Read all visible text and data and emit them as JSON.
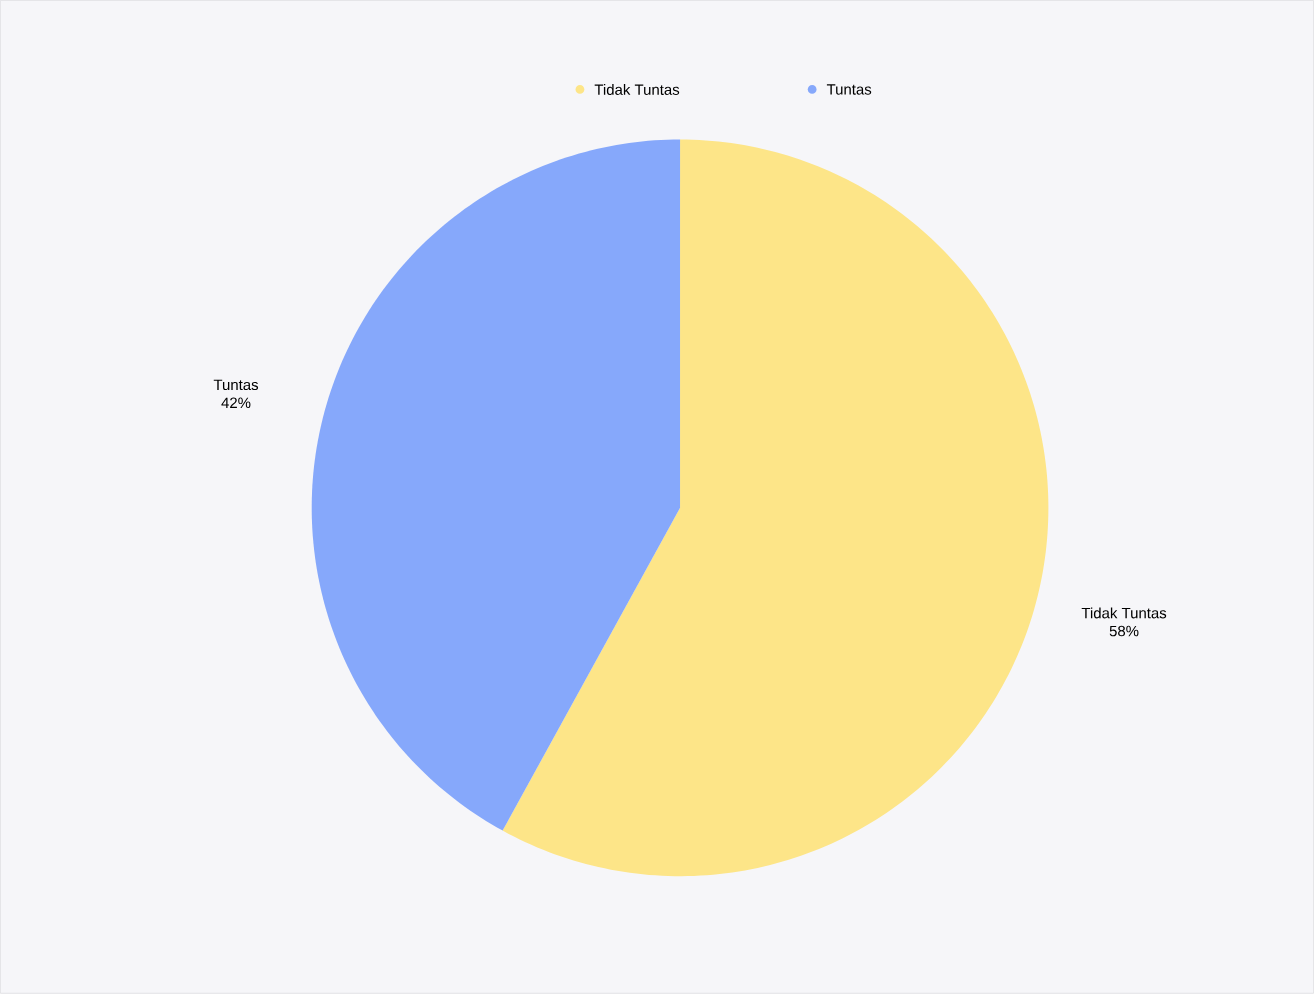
{
  "chart_data": {
    "type": "pie",
    "categories": [
      "Tidak Tuntas",
      "Tuntas"
    ],
    "values": [
      58,
      42
    ],
    "colors": [
      "#fde588",
      "#86a8fb"
    ],
    "value_labels": [
      "58%",
      "42%"
    ],
    "legend": "top"
  }
}
